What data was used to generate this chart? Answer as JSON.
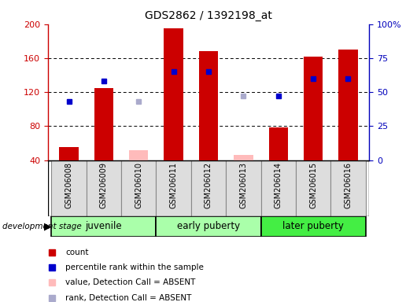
{
  "title": "GDS2862 / 1392198_at",
  "samples": [
    "GSM206008",
    "GSM206009",
    "GSM206010",
    "GSM206011",
    "GSM206012",
    "GSM206013",
    "GSM206014",
    "GSM206015",
    "GSM206016"
  ],
  "count_values": [
    55,
    125,
    52,
    195,
    168,
    46,
    78,
    162,
    170
  ],
  "rank_values": [
    43,
    58,
    43,
    65,
    65,
    47,
    47,
    60,
    60
  ],
  "absent_mask": [
    false,
    false,
    true,
    false,
    false,
    true,
    false,
    false,
    false
  ],
  "bar_color_present": "#cc0000",
  "bar_color_absent": "#ffbbbb",
  "rank_color_present": "#0000cc",
  "rank_color_absent": "#aaaacc",
  "ylim_left": [
    40,
    200
  ],
  "ylim_right": [
    0,
    100
  ],
  "yticks_left": [
    40,
    80,
    120,
    160,
    200
  ],
  "ytick_labels_left": [
    "40",
    "80",
    "120",
    "160",
    "200"
  ],
  "yticks_right": [
    0,
    25,
    50,
    75,
    100
  ],
  "ytick_labels_right": [
    "0",
    "25",
    "50",
    "75",
    "100%"
  ],
  "bar_width": 0.55,
  "groups": [
    {
      "label": "juvenile",
      "start": 0,
      "end": 2,
      "color": "#aaffaa"
    },
    {
      "label": "early puberty",
      "start": 3,
      "end": 5,
      "color": "#aaffaa"
    },
    {
      "label": "later puberty",
      "start": 6,
      "end": 8,
      "color": "#44ee44"
    }
  ],
  "left_axis_color": "#cc0000",
  "right_axis_color": "#0000bb",
  "grid_color": "#000000",
  "grid_yticks": [
    80,
    120,
    160
  ],
  "dev_stage_label": "development stage",
  "legend": [
    {
      "color": "#cc0000",
      "label": "count"
    },
    {
      "color": "#0000cc",
      "label": "percentile rank within the sample"
    },
    {
      "color": "#ffbbbb",
      "label": "value, Detection Call = ABSENT"
    },
    {
      "color": "#aaaacc",
      "label": "rank, Detection Call = ABSENT"
    }
  ]
}
